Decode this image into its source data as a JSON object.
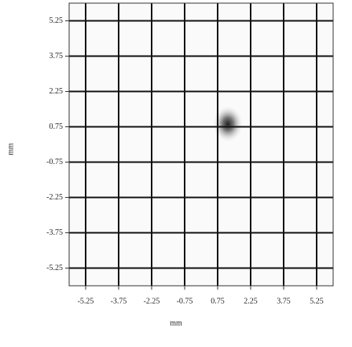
{
  "chart_data": {
    "type": "image-grid",
    "x_label": "mm",
    "y_label": "mm",
    "xlim": [
      -6,
      6
    ],
    "ylim": [
      -6,
      6
    ],
    "xticks": [
      -5.25,
      -3.75,
      -2.25,
      -0.75,
      0.75,
      2.25,
      3.75,
      5.25
    ],
    "yticks": [
      -5.25,
      -3.75,
      -2.25,
      -0.75,
      0.75,
      2.25,
      3.75,
      5.25
    ],
    "grid": true
  }
}
